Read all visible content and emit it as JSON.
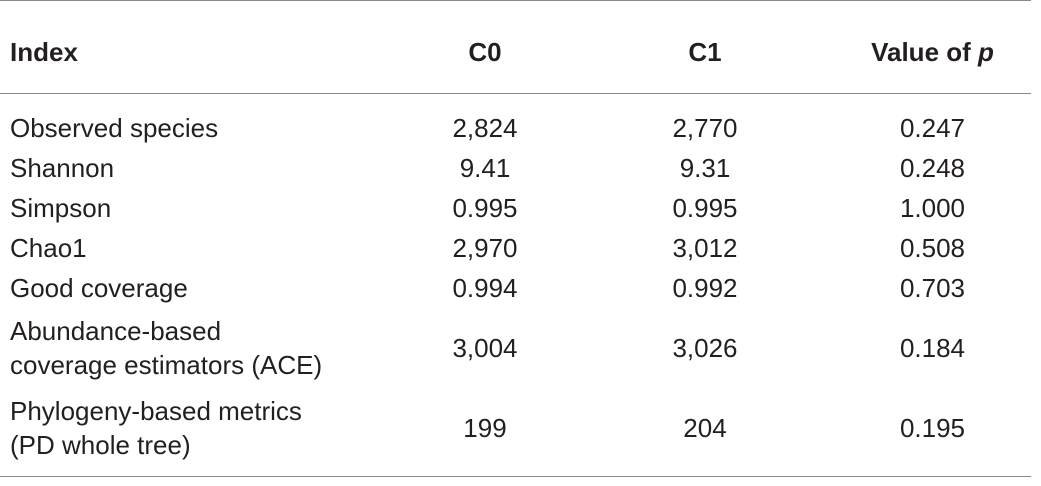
{
  "table": {
    "headers": {
      "index": "Index",
      "c0": "C0",
      "c1": "C1",
      "value_prefix": "Value of ",
      "value_italic": "p"
    },
    "rows": [
      {
        "label_lines": [
          "Observed species"
        ],
        "c0": "2,824",
        "c1": "2,770",
        "p": "0.247"
      },
      {
        "label_lines": [
          "Shannon"
        ],
        "c0": "9.41",
        "c1": "9.31",
        "p": "0.248"
      },
      {
        "label_lines": [
          "Simpson"
        ],
        "c0": "0.995",
        "c1": "0.995",
        "p": "1.000"
      },
      {
        "label_lines": [
          "Chao1"
        ],
        "c0": "2,970",
        "c1": "3,012",
        "p": "0.508"
      },
      {
        "label_lines": [
          "Good coverage"
        ],
        "c0": "0.994",
        "c1": "0.992",
        "p": "0.703"
      },
      {
        "label_lines": [
          "Abundance-based",
          "coverage estimators (ACE)"
        ],
        "c0": "3,004",
        "c1": "3,026",
        "p": "0.184"
      },
      {
        "label_lines": [
          "Phylogeny-based metrics",
          "(PD whole tree)"
        ],
        "c0": "199",
        "c1": "204",
        "p": "0.195"
      }
    ]
  }
}
